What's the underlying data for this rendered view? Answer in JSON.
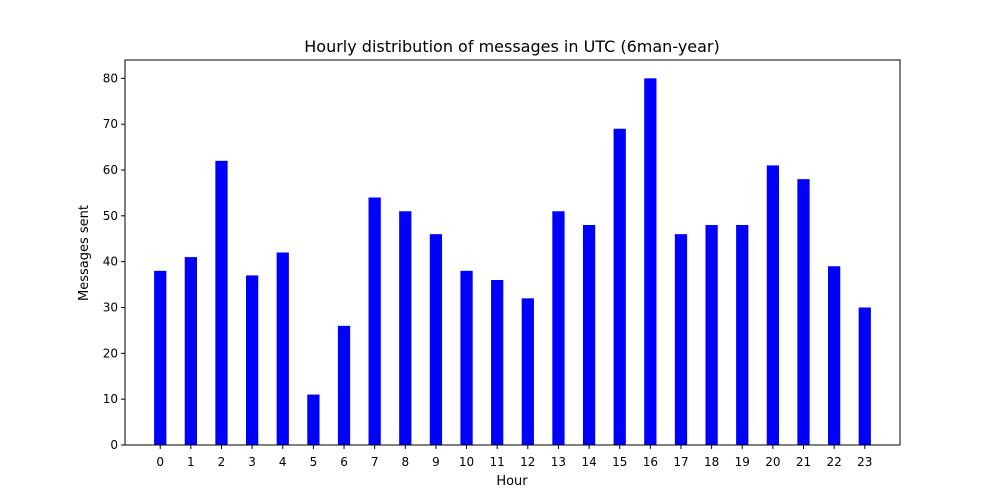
{
  "chart_data": {
    "type": "bar",
    "title": "Hourly distribution of messages in UTC (6man-year)",
    "xlabel": "Hour",
    "ylabel": "Messages sent",
    "categories": [
      "0",
      "1",
      "2",
      "3",
      "4",
      "5",
      "6",
      "7",
      "8",
      "9",
      "10",
      "11",
      "12",
      "13",
      "14",
      "15",
      "16",
      "17",
      "18",
      "19",
      "20",
      "21",
      "22",
      "23"
    ],
    "values": [
      38,
      41,
      62,
      37,
      42,
      11,
      26,
      54,
      51,
      46,
      38,
      36,
      32,
      51,
      48,
      69,
      80,
      46,
      48,
      48,
      61,
      58,
      39,
      30
    ],
    "ylim": [
      0,
      84
    ],
    "yticks": [
      0,
      10,
      20,
      30,
      40,
      50,
      60,
      70,
      80
    ],
    "bar_color": "#0000ff",
    "grid": false
  }
}
